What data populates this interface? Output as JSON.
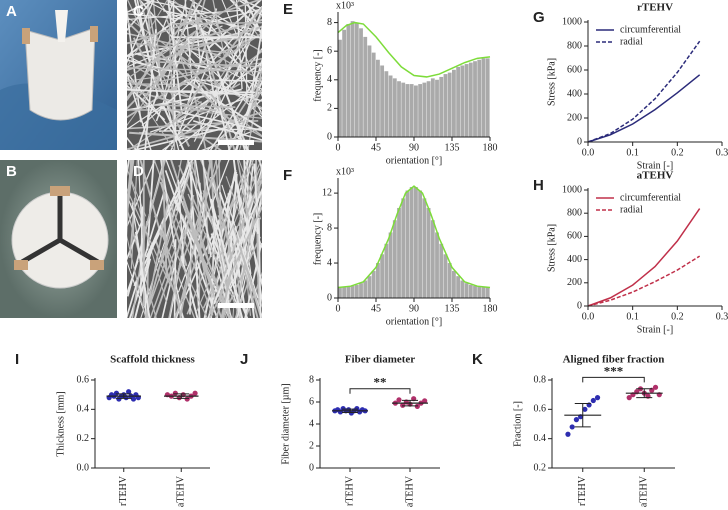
{
  "images": [
    {
      "label": "A"
    },
    {
      "label": "B"
    },
    {
      "label": "C"
    },
    {
      "label": "D"
    }
  ],
  "chart_data": [
    {
      "type": "histogram",
      "label": "E",
      "y_multiplier": "x10³",
      "xlabel": "orientation [°]",
      "ylabel": "frequency [-]",
      "color": "#aaaaaa",
      "bins": [
        0,
        5,
        10,
        15,
        20,
        25,
        30,
        35,
        40,
        45,
        50,
        55,
        60,
        65,
        70,
        75,
        80,
        85,
        90,
        95,
        100,
        105,
        110,
        115,
        120,
        125,
        130,
        135,
        140,
        145,
        150,
        155,
        160,
        165,
        170,
        175,
        180
      ],
      "counts": [
        6.8,
        7.5,
        7.9,
        8.1,
        8.0,
        7.6,
        7.0,
        6.4,
        5.9,
        5.4,
        5.0,
        4.6,
        4.3,
        4.1,
        3.9,
        3.8,
        3.7,
        3.7,
        3.6,
        3.7,
        3.8,
        3.9,
        4.1,
        4.0,
        4.2,
        4.4,
        4.5,
        4.7,
        4.9,
        5.0,
        5.1,
        5.2,
        5.3,
        5.4,
        5.5,
        5.5
      ],
      "fit": {
        "color": "#7ddc3a",
        "x": [
          0,
          10,
          20,
          30,
          45,
          60,
          75,
          90,
          105,
          120,
          135,
          150,
          165,
          180
        ],
        "values": [
          7.3,
          7.8,
          8.0,
          7.9,
          7.0,
          5.9,
          4.9,
          4.3,
          4.2,
          4.4,
          4.8,
          5.2,
          5.5,
          5.6
        ]
      },
      "xlim": [
        0,
        180
      ],
      "xticks": [
        0,
        45,
        90,
        135,
        180
      ],
      "ylim": [
        0,
        8.6
      ],
      "yticks": [
        0,
        2,
        4,
        6,
        8
      ]
    },
    {
      "type": "histogram",
      "label": "F",
      "y_multiplier": "x10³",
      "xlabel": "orientation [°]",
      "ylabel": "frequency [-]",
      "color": "#aaaaaa",
      "bins": [
        0,
        5,
        10,
        15,
        20,
        25,
        30,
        35,
        40,
        45,
        50,
        55,
        60,
        65,
        70,
        75,
        80,
        85,
        90,
        95,
        100,
        105,
        110,
        115,
        120,
        125,
        130,
        135,
        140,
        145,
        150,
        155,
        160,
        165,
        170,
        175,
        180
      ],
      "counts": [
        1.2,
        1.25,
        1.3,
        1.4,
        1.5,
        1.7,
        2.0,
        2.5,
        3.1,
        4.0,
        5.0,
        6.2,
        7.5,
        8.9,
        10.3,
        11.4,
        12.3,
        12.7,
        12.7,
        12.3,
        11.4,
        10.3,
        8.9,
        7.5,
        6.2,
        5.0,
        4.0,
        3.1,
        2.5,
        2.0,
        1.7,
        1.5,
        1.4,
        1.3,
        1.25,
        1.2
      ],
      "fit": {
        "color": "#7ddc3a",
        "x": [
          0,
          15,
          30,
          45,
          60,
          70,
          80,
          90,
          100,
          110,
          120,
          135,
          150,
          165,
          180
        ],
        "values": [
          1.2,
          1.35,
          1.85,
          3.5,
          6.8,
          9.6,
          12.0,
          12.8,
          12.0,
          9.6,
          6.8,
          3.5,
          1.85,
          1.35,
          1.2
        ]
      },
      "xlim": [
        0,
        180
      ],
      "xticks": [
        0,
        45,
        90,
        135,
        180
      ],
      "ylim": [
        0,
        13.5
      ],
      "yticks": [
        0,
        4,
        8,
        12
      ]
    },
    {
      "type": "line",
      "label": "G",
      "title": "rTEHV",
      "xlabel": "Strain [-]",
      "ylabel": "Stress [kPa]",
      "x": [
        0,
        0.05,
        0.1,
        0.15,
        0.2,
        0.25
      ],
      "series": [
        {
          "name": "circumferential",
          "color": "#2b2b7a",
          "line_style": "solid",
          "values": [
            0,
            60,
            150,
            270,
            410,
            560
          ]
        },
        {
          "name": "radial",
          "color": "#2b2b7a",
          "line_style": "dashed",
          "values": [
            0,
            70,
            190,
            360,
            580,
            840
          ]
        }
      ],
      "xlim": [
        0,
        0.3
      ],
      "xticks": [
        {
          "value": 0,
          "label": "0.0"
        },
        0.1,
        0.2,
        0.3
      ],
      "ylim": [
        0,
        1000
      ],
      "yticks": [
        0,
        200,
        400,
        600,
        800,
        1000
      ],
      "legend": "upper-left"
    },
    {
      "type": "line",
      "label": "H",
      "title": "aTEHV",
      "xlabel": "Strain [-]",
      "ylabel": "Stress [kPa]",
      "x": [
        0,
        0.05,
        0.1,
        0.15,
        0.2,
        0.25
      ],
      "series": [
        {
          "name": "circumferential",
          "color": "#c0304a",
          "line_style": "solid",
          "values": [
            0,
            70,
            180,
            340,
            560,
            840
          ]
        },
        {
          "name": "radial",
          "color": "#c0304a",
          "line_style": "dashed",
          "values": [
            0,
            50,
            120,
            210,
            310,
            430
          ]
        }
      ],
      "xlim": [
        0,
        0.3
      ],
      "xticks": [
        {
          "value": 0,
          "label": "0.0"
        },
        0.1,
        0.2,
        0.3
      ],
      "ylim": [
        0,
        1000
      ],
      "yticks": [
        0,
        200,
        400,
        600,
        800,
        1000
      ],
      "legend": "upper-left"
    },
    {
      "type": "dotplot",
      "label": "I",
      "title": "Scaffold thickness",
      "ylabel": "Thickness [mm]",
      "groups": [
        {
          "name": "rTEHV",
          "color": "#2d2db0",
          "values": [
            0.48,
            0.5,
            0.49,
            0.51,
            0.47,
            0.49,
            0.5,
            0.48,
            0.52,
            0.49,
            0.47,
            0.5,
            0.48
          ],
          "mean": 0.49,
          "sd": 0.015
        },
        {
          "name": "aTEHV",
          "color": "#b0306a",
          "values": [
            0.5,
            0.49,
            0.51,
            0.48,
            0.5,
            0.47,
            0.49,
            0.51
          ],
          "mean": 0.49,
          "sd": 0.015
        }
      ],
      "ylim": [
        0,
        0.6
      ],
      "yticks": [
        {
          "value": 0,
          "label": "0.0"
        },
        0.2,
        0.4,
        0.6
      ]
    },
    {
      "type": "dotplot",
      "label": "J",
      "title": "Fiber diameter",
      "ylabel": "Fiber diameter [µm]",
      "annotation": "**",
      "groups": [
        {
          "name": "rTEHV",
          "color": "#2d2db0",
          "values": [
            5.2,
            5.3,
            5.1,
            5.4,
            5.2,
            5.3,
            5.0,
            5.2,
            5.4,
            5.1,
            5.3,
            5.2
          ],
          "mean": 5.2,
          "sd": 0.15
        },
        {
          "name": "aTEHV",
          "color": "#b0306a",
          "values": [
            5.9,
            6.2,
            5.7,
            6.0,
            5.8,
            6.3,
            5.6,
            5.9,
            6.1
          ],
          "mean": 5.9,
          "sd": 0.25
        }
      ],
      "ylim": [
        0,
        8
      ],
      "yticks": [
        0,
        2,
        4,
        6,
        8
      ]
    },
    {
      "type": "dotplot",
      "label": "K",
      "title": "Aligned fiber fraction",
      "ylabel": "Fraction [-]",
      "annotation": "***",
      "groups": [
        {
          "name": "rTEHV",
          "color": "#2d2db0",
          "values": [
            0.43,
            0.48,
            0.53,
            0.55,
            0.6,
            0.63,
            0.66,
            0.68
          ],
          "mean": 0.56,
          "sd": 0.08
        },
        {
          "name": "aTEHV",
          "color": "#b0306a",
          "values": [
            0.68,
            0.7,
            0.72,
            0.74,
            0.71,
            0.69,
            0.73,
            0.75,
            0.7
          ],
          "mean": 0.71,
          "sd": 0.03
        }
      ],
      "ylim": [
        0.2,
        0.8
      ],
      "yticks": [
        0.2,
        0.4,
        0.6,
        0.8
      ]
    }
  ]
}
